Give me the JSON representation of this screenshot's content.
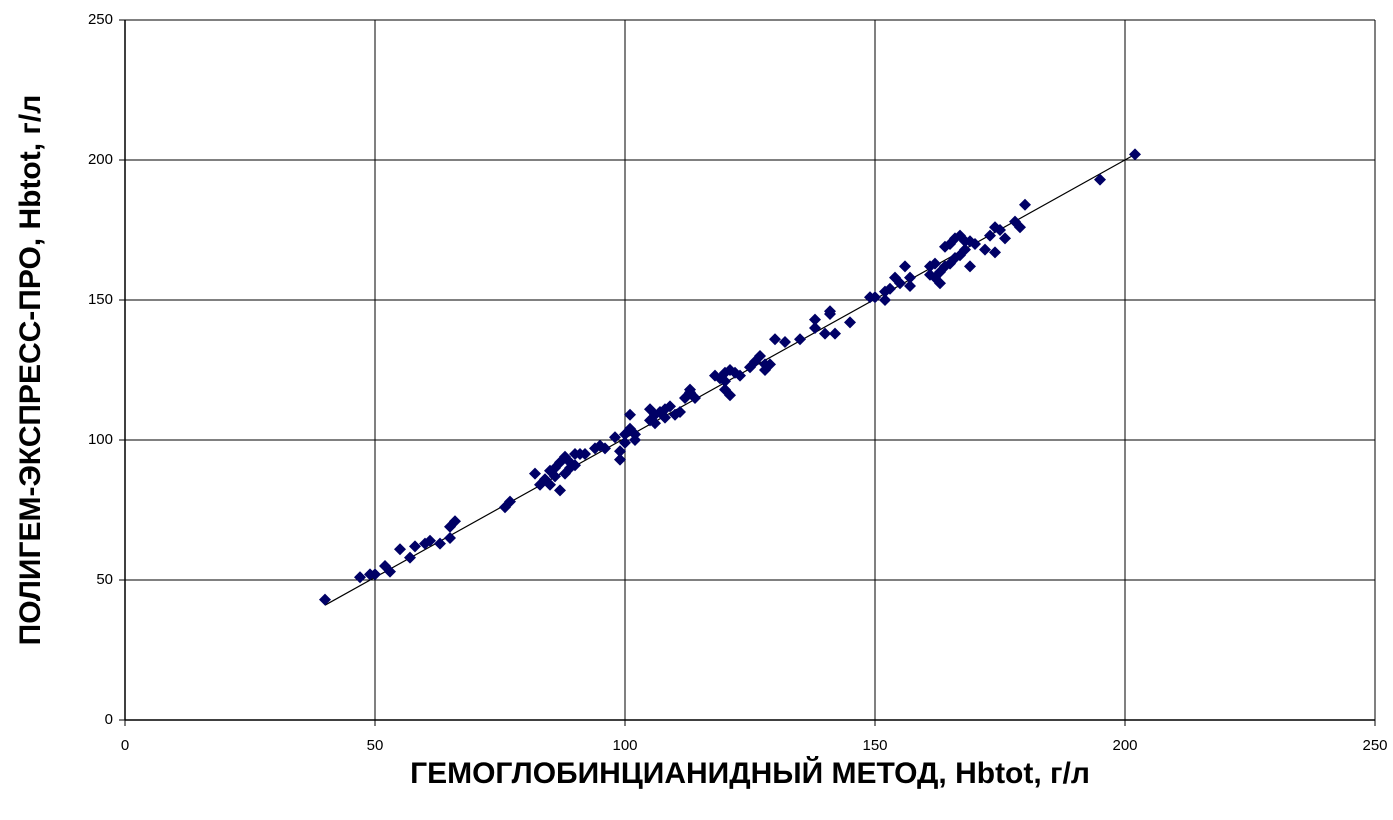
{
  "chart_data": {
    "type": "scatter",
    "x_label": "ГЕМОГЛОБИНЦИАНИДНЫЙ МЕТОД, Hbtot, г/л",
    "y_label": "ПОЛИГЕМ-ЭКСПРЕСС-ПРО, Hbtot, г/л",
    "color": "#000066",
    "grid": true,
    "xlim": [
      0,
      250
    ],
    "xticks": [
      0,
      50,
      100,
      150,
      200,
      250
    ],
    "ylim": [
      0,
      250
    ],
    "yticks": [
      0,
      50,
      100,
      150,
      200,
      250
    ],
    "x": [
      40,
      47,
      49,
      50,
      52,
      53,
      55,
      57,
      58,
      60,
      61,
      63,
      65,
      65,
      66,
      76,
      77,
      82,
      83,
      84,
      85,
      85,
      86,
      86,
      87,
      87,
      88,
      88,
      89,
      89,
      90,
      90,
      91,
      92,
      94,
      95,
      96,
      98,
      99,
      99,
      100,
      100,
      101,
      101,
      102,
      102,
      105,
      105,
      106,
      106,
      107,
      108,
      108,
      109,
      110,
      111,
      112,
      113,
      113,
      114,
      118,
      119,
      120,
      120,
      120,
      121,
      121,
      122,
      123,
      125,
      126,
      127,
      128,
      128,
      129,
      130,
      132,
      135,
      138,
      138,
      140,
      141,
      141,
      142,
      145,
      149,
      150,
      152,
      152,
      153,
      154,
      155,
      156,
      157,
      157,
      161,
      161,
      162,
      162,
      163,
      163,
      164,
      164,
      165,
      165,
      166,
      166,
      167,
      167,
      168,
      168,
      169,
      169,
      170,
      172,
      173,
      174,
      174,
      175,
      176,
      178,
      179,
      180,
      195,
      202
    ],
    "values": [
      43,
      51,
      52,
      52,
      55,
      53,
      61,
      58,
      62,
      63,
      64,
      63,
      65,
      69,
      71,
      76,
      78,
      88,
      84,
      86,
      89,
      84,
      90,
      87,
      82,
      92,
      94,
      88,
      90,
      92,
      95,
      91,
      95,
      95,
      97,
      98,
      97,
      101,
      96,
      93,
      102,
      99,
      109,
      104,
      100,
      102,
      107,
      111,
      109,
      106,
      110,
      108,
      111,
      112,
      109,
      110,
      115,
      117,
      118,
      115,
      123,
      122,
      121,
      118,
      124,
      116,
      125,
      124,
      123,
      126,
      128,
      130,
      127,
      125,
      127,
      136,
      135,
      136,
      140,
      143,
      138,
      145,
      146,
      138,
      142,
      151,
      151,
      150,
      153,
      154,
      158,
      156,
      162,
      158,
      155,
      159,
      162,
      163,
      158,
      160,
      156,
      162,
      169,
      163,
      170,
      165,
      172,
      173,
      166,
      171,
      168,
      171,
      162,
      170,
      168,
      173,
      176,
      167,
      175,
      172,
      178,
      176,
      184,
      193,
      202
    ],
    "trendline": {
      "x": [
        40,
        202
      ],
      "values": [
        41,
        202
      ]
    }
  }
}
